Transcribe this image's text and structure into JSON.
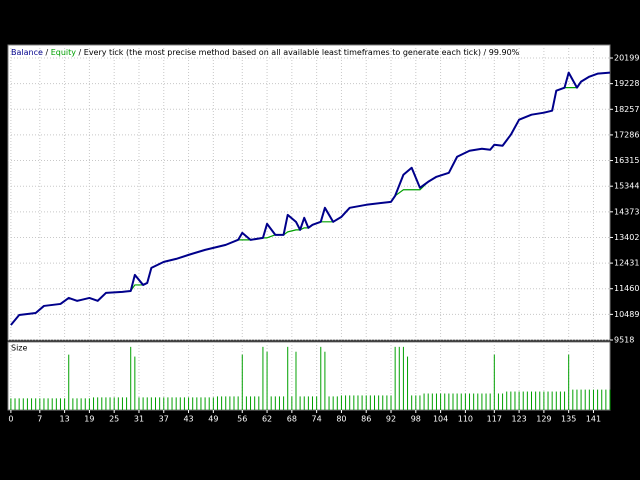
{
  "chart_data": [
    {
      "type": "line",
      "subtitle": "Every tick (the most precise method based on all available least timeframes to generate each tick)",
      "modelling_quality": "99.90%",
      "separator": " / ",
      "x": [
        0,
        2,
        6,
        8,
        12,
        14,
        16,
        17,
        19,
        21,
        23,
        27,
        29,
        30,
        32,
        33,
        34,
        37,
        40,
        43,
        47,
        52,
        55,
        56,
        58,
        61,
        62,
        64,
        66,
        67,
        69,
        70,
        71,
        72,
        73,
        75,
        76,
        78,
        80,
        82,
        86,
        92,
        93,
        95,
        97,
        99,
        101,
        103,
        106,
        108,
        111,
        114,
        116,
        117,
        119,
        121,
        123,
        126,
        129,
        131,
        132,
        134,
        135,
        137,
        138,
        140,
        142,
        145
      ],
      "series": [
        {
          "name": "Balance",
          "color": "#00008b",
          "values": [
            10087,
            10466,
            10542,
            10808,
            10884,
            11111,
            11000,
            11035,
            11111,
            11000,
            11301,
            11339,
            11376,
            11984,
            11604,
            11680,
            12249,
            12477,
            12590,
            12742,
            12932,
            13121,
            13311,
            13577,
            13311,
            13387,
            13918,
            13501,
            13501,
            14259,
            13994,
            13690,
            14146,
            13766,
            13880,
            13994,
            14525,
            13994,
            14183,
            14525,
            14639,
            14752,
            14980,
            15776,
            16042,
            15284,
            15511,
            15701,
            15852,
            16459,
            16687,
            16763,
            16725,
            16914,
            16876,
            17294,
            17863,
            18052,
            18128,
            18204,
            18963,
            19077,
            19645,
            19077,
            19305,
            19494,
            19607,
            19645
          ]
        },
        {
          "name": "Equity",
          "color": "#00a000",
          "values": [
            10087,
            10466,
            10542,
            10808,
            10884,
            11111,
            11000,
            11035,
            11111,
            11000,
            11301,
            11339,
            11376,
            11604,
            11604,
            11680,
            12249,
            12477,
            12590,
            12742,
            12932,
            13121,
            13311,
            13311,
            13311,
            13387,
            13387,
            13501,
            13501,
            13614,
            13690,
            13690,
            13766,
            13766,
            13880,
            13994,
            13994,
            13994,
            14183,
            14525,
            14639,
            14752,
            14980,
            15208,
            15208,
            15208,
            15511,
            15701,
            15852,
            16459,
            16687,
            16763,
            16725,
            16914,
            16876,
            17294,
            17863,
            18052,
            18128,
            18204,
            18963,
            19077,
            19077,
            19077,
            19305,
            19494,
            19607,
            19645
          ]
        }
      ],
      "xlim": [
        -0.7,
        145
      ],
      "ylim": [
        9518,
        20692
      ],
      "yticks": [
        20199,
        19228,
        18257,
        17286,
        16315,
        15344,
        14373,
        13402,
        12431,
        11460,
        10489,
        9518
      ],
      "grid": true
    },
    {
      "type": "bar",
      "title": "Size",
      "color": "#00a000",
      "x": [
        0,
        1,
        2,
        3,
        4,
        5,
        6,
        7,
        8,
        9,
        10,
        11,
        12,
        13,
        14,
        15,
        16,
        17,
        18,
        19,
        20,
        21,
        22,
        23,
        24,
        25,
        26,
        27,
        28,
        29,
        30,
        31,
        32,
        33,
        34,
        35,
        36,
        37,
        38,
        39,
        40,
        41,
        42,
        43,
        44,
        45,
        46,
        47,
        48,
        49,
        50,
        51,
        52,
        53,
        54,
        55,
        56,
        57,
        58,
        59,
        60,
        61,
        62,
        63,
        64,
        65,
        66,
        67,
        68,
        69,
        70,
        71,
        72,
        73,
        74,
        75,
        76,
        77,
        78,
        79,
        80,
        81,
        82,
        83,
        84,
        85,
        86,
        87,
        88,
        89,
        90,
        91,
        92,
        93,
        94,
        95,
        96,
        97,
        98,
        99,
        100,
        101,
        102,
        103,
        104,
        105,
        106,
        107,
        108,
        109,
        110,
        111,
        112,
        113,
        114,
        115,
        116,
        117,
        118,
        119,
        120,
        121,
        122,
        123,
        124,
        125,
        126,
        127,
        128,
        129,
        130,
        131,
        132,
        133,
        134,
        135,
        136,
        137,
        138,
        139,
        140,
        141,
        142,
        143,
        144,
        145
      ],
      "values": [
        0.12,
        0.12,
        0.12,
        0.12,
        0.12,
        0.12,
        0.12,
        0.12,
        0.12,
        0.12,
        0.12,
        0.12,
        0.12,
        0.12,
        0.57,
        0.12,
        0.12,
        0.12,
        0.12,
        0.12,
        0.13,
        0.13,
        0.13,
        0.13,
        0.13,
        0.13,
        0.13,
        0.13,
        0.13,
        0.65,
        0.55,
        0.13,
        0.13,
        0.13,
        0.13,
        0.13,
        0.13,
        0.13,
        0.13,
        0.13,
        0.13,
        0.13,
        0.13,
        0.13,
        0.13,
        0.13,
        0.13,
        0.13,
        0.13,
        0.13,
        0.14,
        0.14,
        0.14,
        0.14,
        0.14,
        0.14,
        0.57,
        0.14,
        0.14,
        0.14,
        0.14,
        0.65,
        0.6,
        0.14,
        0.14,
        0.14,
        0.14,
        0.65,
        0.14,
        0.6,
        0.14,
        0.14,
        0.14,
        0.14,
        0.14,
        0.65,
        0.6,
        0.14,
        0.14,
        0.14,
        0.15,
        0.15,
        0.15,
        0.15,
        0.15,
        0.15,
        0.15,
        0.15,
        0.15,
        0.15,
        0.15,
        0.15,
        0.15,
        0.65,
        0.65,
        0.65,
        0.55,
        0.15,
        0.15,
        0.15,
        0.17,
        0.17,
        0.17,
        0.17,
        0.17,
        0.17,
        0.17,
        0.17,
        0.17,
        0.17,
        0.17,
        0.17,
        0.17,
        0.17,
        0.17,
        0.17,
        0.17,
        0.57,
        0.17,
        0.17,
        0.19,
        0.19,
        0.19,
        0.19,
        0.19,
        0.19,
        0.19,
        0.19,
        0.19,
        0.19,
        0.19,
        0.19,
        0.19,
        0.19,
        0.19,
        0.57,
        0.21,
        0.21,
        0.21,
        0.21,
        0.21,
        0.21,
        0.21,
        0.21,
        0.21,
        0.21
      ],
      "xlim": [
        -0.7,
        145
      ],
      "ylim": [
        0,
        0.7
      ],
      "xticks": [
        0,
        7,
        13,
        19,
        25,
        31,
        37,
        43,
        49,
        56,
        62,
        68,
        74,
        80,
        86,
        92,
        98,
        104,
        110,
        117,
        123,
        129,
        135,
        141
      ],
      "grid": true
    }
  ]
}
